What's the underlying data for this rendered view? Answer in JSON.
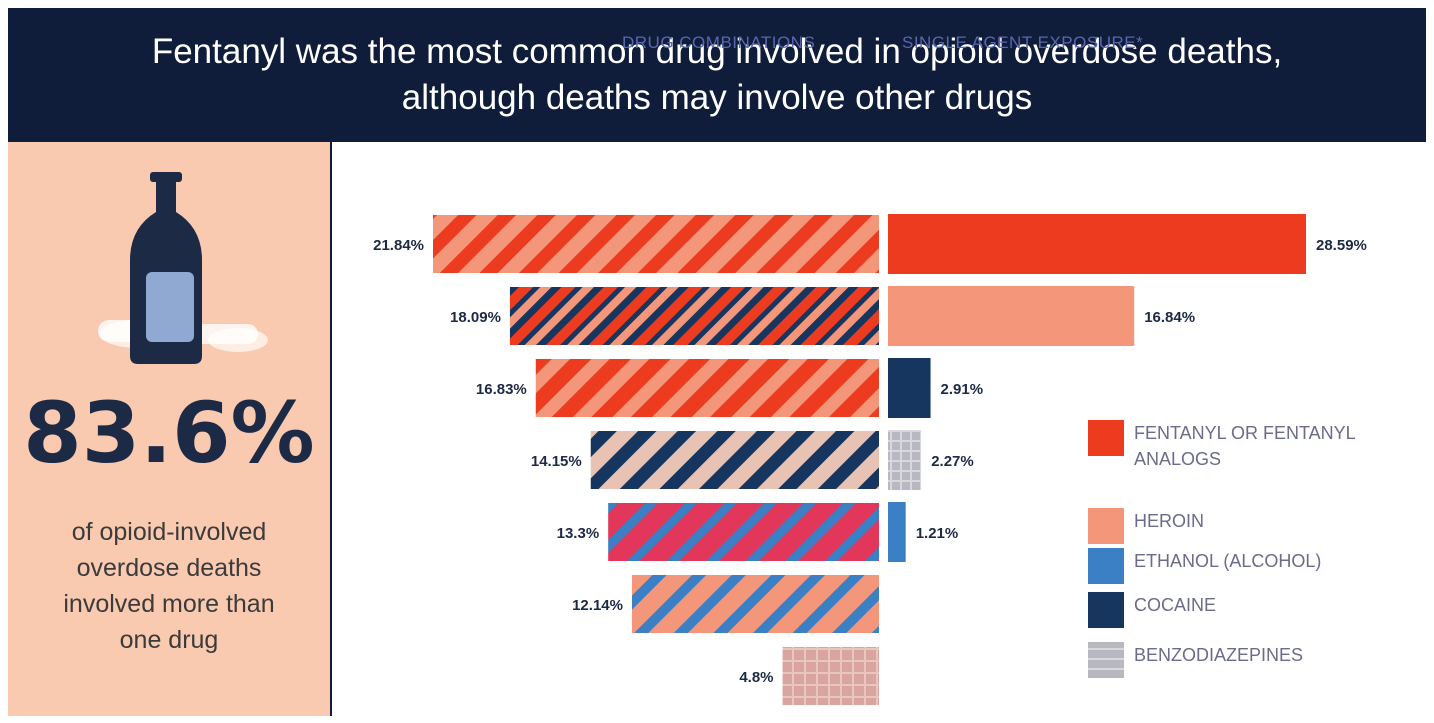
{
  "header": {
    "title": "Fentanyl was the most common drug involved in opioid overdose deaths, although deaths may involve other drugs"
  },
  "left_panel": {
    "stat": "83.6%",
    "description": "of opioid-involved overdose deaths involved more than one drug",
    "icon": "bottle-icon"
  },
  "chart_data": {
    "type": "bar",
    "column_headers": [
      "DRUG COMBINATIONS",
      "SINGLE AGENT EXPOSURE*"
    ],
    "drug_combinations": {
      "labels": [
        "21.84%",
        "18.09%",
        "16.83%",
        "14.15%",
        "13.3%",
        "12.14%",
        "4.8%"
      ],
      "values": [
        21.84,
        18.09,
        16.83,
        14.15,
        13.3,
        12.14,
        4.8
      ]
    },
    "single_agent_exposure": {
      "labels": [
        "28.59%",
        "16.84%",
        "2.91%",
        "2.27%",
        "1.21%"
      ],
      "values": [
        28.59,
        16.84,
        2.91,
        2.27,
        1.21
      ],
      "drugs": [
        "fentanyl",
        "heroin",
        "cocaine",
        "benzodiazepines",
        "ethanol"
      ]
    },
    "legend": [
      {
        "key": "fentanyl",
        "label": "FENTANYL OR FENTANYL ANALOGS",
        "color": "#ec3b1e"
      },
      {
        "key": "heroin",
        "label": "HEROIN",
        "color": "#f3967a"
      },
      {
        "key": "ethanol",
        "label": "ETHANOL (ALCOHOL)",
        "color": "#3b7fc4"
      },
      {
        "key": "cocaine",
        "label": "COCAINE",
        "color": "#16365f"
      },
      {
        "key": "benzodiazepines",
        "label": "BENZODIAZEPINES",
        "color": "#a9a9b3"
      }
    ]
  }
}
